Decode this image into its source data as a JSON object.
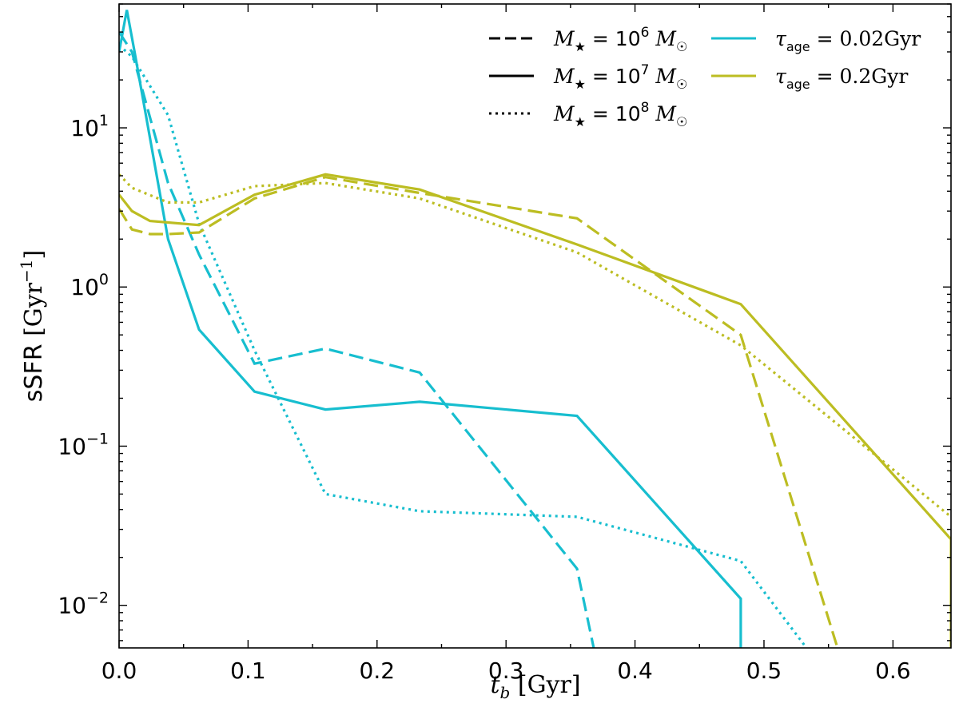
{
  "chart_data": {
    "type": "line",
    "xlabel": "t_b [Gyr]",
    "ylabel": "sSFR [Gyr^-1]",
    "xlim": [
      0.0,
      0.645
    ],
    "ylim": [
      0.0054,
      60
    ],
    "yscale": "log",
    "x_ticks": [
      0.0,
      0.1,
      0.2,
      0.3,
      0.4,
      0.5,
      0.6
    ],
    "x_tick_labels": [
      "0.0",
      "0.1",
      "0.2",
      "0.3",
      "0.4",
      "0.5",
      "0.6"
    ],
    "y_ticks": [
      0.01,
      0.1,
      1,
      10
    ],
    "y_tick_labels": [
      {
        "base": "10",
        "exp": "−2"
      },
      {
        "base": "10",
        "exp": "−1"
      },
      {
        "base": "10",
        "exp": "0"
      },
      {
        "base": "10",
        "exp": "1"
      }
    ],
    "grid": false,
    "legend_placement": "top-right",
    "legend": {
      "styles": [
        {
          "label": "M★ = 10^6 M☉",
          "mass_exp": "6",
          "dash": "dashed"
        },
        {
          "label": "M★ = 10^7 M☉",
          "mass_exp": "7",
          "dash": "solid"
        },
        {
          "label": "M★ = 10^8 M☉",
          "mass_exp": "8",
          "dash": "dotted"
        }
      ],
      "colors": [
        {
          "label": "τage = 0.02Gyr",
          "value": "0.02Gyr",
          "color": "#17becf"
        },
        {
          "label": "τage = 0.2Gyr",
          "value": "0.2Gyr",
          "color": "#bcbd22"
        }
      ]
    },
    "series": [
      {
        "tau": "0.02Gyr",
        "mass": "1e6",
        "color": "#17becf",
        "dash": "dashed",
        "x": [
          0.0,
          0.01,
          0.038,
          0.062,
          0.105,
          0.16,
          0.233,
          0.355,
          0.368
        ],
        "y": [
          40,
          30,
          4.5,
          1.6,
          0.33,
          0.41,
          0.29,
          0.017,
          0.0054
        ]
      },
      {
        "tau": "0.02Gyr",
        "mass": "1e7",
        "color": "#17becf",
        "dash": "solid",
        "x": [
          0.0,
          0.006,
          0.012,
          0.038,
          0.062,
          0.105,
          0.16,
          0.233,
          0.355,
          0.482,
          0.482
        ],
        "y": [
          30,
          55,
          30,
          2.0,
          0.54,
          0.22,
          0.17,
          0.19,
          0.155,
          0.011,
          0.0054
        ]
      },
      {
        "tau": "0.02Gyr",
        "mass": "1e8",
        "color": "#17becf",
        "dash": "dotted",
        "x": [
          0.0,
          0.01,
          0.038,
          0.062,
          0.105,
          0.16,
          0.233,
          0.355,
          0.482,
          0.533
        ],
        "y": [
          33,
          28,
          12,
          2.5,
          0.4,
          0.05,
          0.039,
          0.036,
          0.019,
          0.0054
        ]
      },
      {
        "tau": "0.2Gyr",
        "mass": "1e6",
        "color": "#bcbd22",
        "dash": "dashed",
        "x": [
          0.0,
          0.01,
          0.024,
          0.038,
          0.062,
          0.105,
          0.16,
          0.233,
          0.355,
          0.482,
          0.557
        ],
        "y": [
          3.1,
          2.3,
          2.15,
          2.15,
          2.2,
          3.6,
          4.9,
          3.9,
          2.7,
          0.5,
          0.0054
        ]
      },
      {
        "tau": "0.2Gyr",
        "mass": "1e7",
        "color": "#bcbd22",
        "dash": "solid",
        "x": [
          0.0,
          0.01,
          0.024,
          0.062,
          0.105,
          0.16,
          0.233,
          0.355,
          0.482,
          0.645,
          0.645
        ],
        "y": [
          3.8,
          3.0,
          2.6,
          2.45,
          3.8,
          5.1,
          4.1,
          1.85,
          0.78,
          0.026,
          0.0054
        ]
      },
      {
        "tau": "0.2Gyr",
        "mass": "1e8",
        "color": "#bcbd22",
        "dash": "dotted",
        "x": [
          0.0,
          0.01,
          0.038,
          0.062,
          0.105,
          0.16,
          0.233,
          0.355,
          0.482,
          0.645
        ],
        "y": [
          5.1,
          4.2,
          3.4,
          3.4,
          4.3,
          4.5,
          3.6,
          1.65,
          0.43,
          0.036
        ]
      }
    ]
  }
}
